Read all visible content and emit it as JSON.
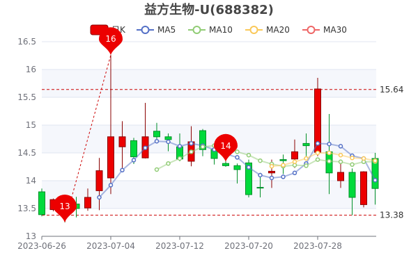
{
  "chart_data": {
    "type": "candlestick",
    "title": "益方生物-U(688382)",
    "legend": {
      "placement": "top-center",
      "items": [
        {
          "name": "日K",
          "color": "#ec0000"
        },
        {
          "name": "MA5",
          "color": "#5470c6"
        },
        {
          "name": "MA10",
          "color": "#91cc75"
        },
        {
          "name": "MA20",
          "color": "#fac858"
        },
        {
          "name": "MA30",
          "color": "#ee6666"
        }
      ]
    },
    "colors": {
      "up": "#ec0000",
      "up_border": "#8a0000",
      "down": "#00da3c",
      "down_border": "#008f28",
      "mark": "#cc0000"
    },
    "ylim": [
      13,
      16.5
    ],
    "yticks": [
      "13",
      "13.5",
      "14",
      "14.5",
      "15",
      "15.5",
      "16",
      "16.5"
    ],
    "xtick_labels": [
      "2023-06-26",
      "2023-07-04",
      "2023-07-12",
      "2023-07-20",
      "2023-07-28"
    ],
    "grid": true,
    "dates": [
      "2023-06-26",
      "2023-06-27",
      "2023-06-28",
      "2023-06-29",
      "2023-06-30",
      "2023-07-03",
      "2023-07-04",
      "2023-07-05",
      "2023-07-06",
      "2023-07-07",
      "2023-07-10",
      "2023-07-11",
      "2023-07-12",
      "2023-07-13",
      "2023-07-14",
      "2023-07-17",
      "2023-07-18",
      "2023-07-19",
      "2023-07-20",
      "2023-07-21",
      "2023-07-24",
      "2023-07-25",
      "2023-07-26",
      "2023-07-27",
      "2023-07-28",
      "2023-07-31",
      "2023-08-01",
      "2023-08-02",
      "2023-08-03",
      "2023-08-04"
    ],
    "ohlc": [
      [
        13.8,
        13.86,
        13.36,
        13.39
      ],
      [
        13.48,
        13.68,
        13.45,
        13.66
      ],
      [
        13.55,
        13.62,
        13.25,
        13.48
      ],
      [
        13.58,
        13.71,
        13.34,
        13.5
      ],
      [
        13.51,
        13.86,
        13.46,
        13.7
      ],
      [
        13.82,
        14.41,
        13.47,
        14.18
      ],
      [
        14.05,
        16.26,
        13.76,
        14.79
      ],
      [
        14.61,
        15.07,
        14.23,
        14.79
      ],
      [
        14.72,
        14.77,
        14.3,
        14.43
      ],
      [
        14.41,
        15.4,
        14.4,
        14.79
      ],
      [
        14.89,
        15.04,
        14.71,
        14.79
      ],
      [
        14.79,
        14.85,
        14.53,
        14.74
      ],
      [
        14.61,
        14.85,
        14.35,
        14.39
      ],
      [
        14.35,
        14.98,
        14.26,
        14.7
      ],
      [
        14.9,
        14.93,
        14.44,
        14.56
      ],
      [
        14.56,
        14.62,
        14.29,
        14.4
      ],
      [
        14.31,
        14.35,
        14.25,
        14.27
      ],
      [
        14.27,
        14.31,
        13.95,
        14.2
      ],
      [
        14.32,
        14.38,
        13.7,
        13.75
      ],
      [
        13.88,
        14.14,
        13.7,
        13.87
      ],
      [
        14.14,
        14.38,
        13.87,
        14.17
      ],
      [
        14.38,
        14.47,
        14.12,
        14.36
      ],
      [
        14.39,
        14.74,
        14.23,
        14.52
      ],
      [
        14.67,
        14.85,
        14.44,
        14.63
      ],
      [
        14.51,
        15.85,
        14.44,
        15.65
      ],
      [
        14.52,
        15.2,
        13.76,
        14.14
      ],
      [
        14.0,
        14.33,
        13.87,
        14.15
      ],
      [
        14.15,
        14.22,
        13.38,
        13.7
      ],
      [
        13.57,
        14.17,
        13.52,
        14.16
      ],
      [
        14.4,
        14.5,
        13.57,
        13.86
      ]
    ],
    "ma": {
      "MA5": [
        null,
        null,
        null,
        null,
        null,
        13.7,
        13.92,
        14.19,
        14.37,
        14.59,
        14.71,
        14.7,
        14.62,
        14.67,
        14.63,
        14.56,
        14.48,
        14.42,
        14.24,
        14.1,
        14.05,
        14.07,
        14.14,
        14.31,
        14.67,
        14.66,
        14.62,
        14.45,
        14.4,
        14.01
      ],
      "MA10": [
        null,
        null,
        null,
        null,
        null,
        null,
        null,
        null,
        null,
        null,
        14.2,
        14.31,
        14.4,
        14.52,
        14.61,
        14.63,
        14.58,
        14.52,
        14.46,
        14.36,
        14.3,
        14.26,
        14.28,
        14.27,
        14.38,
        14.35,
        14.34,
        14.29,
        14.34,
        14.34
      ],
      "MA20": [
        null,
        null,
        null,
        null,
        null,
        null,
        null,
        null,
        null,
        null,
        null,
        null,
        null,
        null,
        null,
        null,
        null,
        null,
        null,
        null,
        14.26,
        14.28,
        14.34,
        14.4,
        14.5,
        14.5,
        14.46,
        14.41,
        14.4,
        14.36
      ],
      "MA30": []
    },
    "mark_lines": [
      {
        "value": 15.64,
        "label": "15.64"
      },
      {
        "value": 13.38,
        "label": "13.38"
      }
    ],
    "mark_points": [
      {
        "label": "16",
        "date": "2023-07-04",
        "value": 16.26
      },
      {
        "label": "13",
        "date": "2023-06-28",
        "value": 13.25
      },
      {
        "label": "14",
        "date": "2023-07-18",
        "value": 14.34
      }
    ],
    "trend_line": {
      "from": {
        "date": "2023-06-28",
        "value": 13.25
      },
      "to": {
        "date": "2023-07-04",
        "value": 16.26
      }
    }
  }
}
